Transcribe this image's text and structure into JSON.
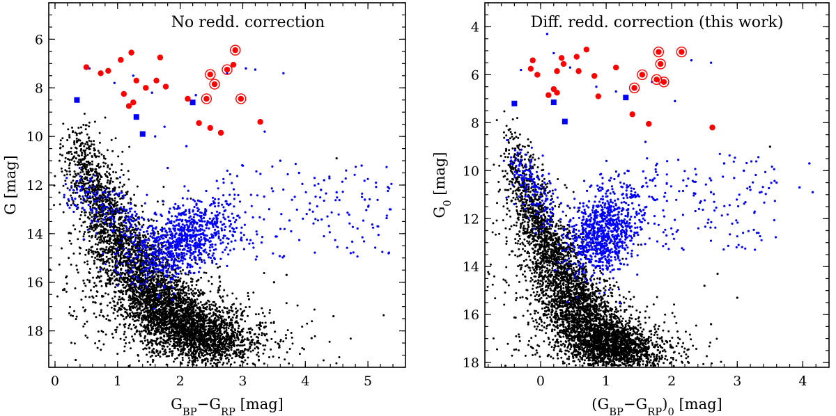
{
  "chart_data": [
    {
      "type": "scatter",
      "title": "No redd. correction",
      "xlabel": "G_BP−G_RP [mag]",
      "ylabel": "G [mag]",
      "xlim": [
        -0.1,
        5.6
      ],
      "ylim": [
        19.5,
        4.5
      ],
      "y_inverted": true,
      "xticks": [
        0,
        1,
        2,
        3,
        4,
        5
      ],
      "yticks": [
        6,
        8,
        10,
        12,
        14,
        16,
        18
      ],
      "grid": false,
      "colors": {
        "field_stars": "#000000",
        "members": "#0000ff",
        "giants": "#ff0000"
      },
      "field_stars": {
        "description_note": "dense black field-star sequence",
        "ridge": [
          [
            0.3,
            9.5
          ],
          [
            0.6,
            11.8
          ],
          [
            1.0,
            14.2
          ],
          [
            1.5,
            16.2
          ],
          [
            2.0,
            17.6
          ],
          [
            2.6,
            18.8
          ]
        ],
        "outliers": [
          [
            3.7,
            15.7
          ],
          [
            4.1,
            18.3
          ],
          [
            4.45,
            17.4
          ],
          [
            3.1,
            16.7
          ],
          [
            3.5,
            16.0
          ],
          [
            4.5,
            10.9
          ],
          [
            0.33,
            19.2
          ]
        ]
      },
      "blue_members": {
        "clump_center": [
          2.0,
          14.3
        ],
        "upper_sequence": [
          [
            0.35,
            12.2
          ],
          [
            0.6,
            12.6
          ],
          [
            0.9,
            13.0
          ],
          [
            1.2,
            13.5
          ]
        ],
        "bright": [
          [
            0.55,
            7.2
          ],
          [
            0.95,
            7.8
          ],
          [
            1.25,
            7.5
          ],
          [
            1.55,
            8.2
          ],
          [
            1.75,
            9.6
          ],
          [
            2.25,
            8.3
          ],
          [
            2.75,
            7.4
          ],
          [
            3.05,
            7.2
          ],
          [
            3.2,
            7.25
          ],
          [
            3.65,
            7.4
          ],
          [
            3.35,
            9.8
          ],
          [
            1.6,
            10.0
          ],
          [
            2.1,
            10.4
          ],
          [
            1.8,
            11.3
          ]
        ],
        "far_red": [
          [
            4.25,
            12.2
          ],
          [
            4.5,
            12.3
          ],
          [
            4.9,
            11.2
          ],
          [
            4.95,
            12.6
          ],
          [
            5.35,
            13.0
          ],
          [
            4.3,
            11.8
          ],
          [
            3.9,
            11.5
          ],
          [
            3.6,
            11.0
          ]
        ]
      },
      "blue_squares": [
        [
          0.35,
          8.5
        ],
        [
          1.3,
          9.2
        ],
        [
          1.4,
          9.9
        ],
        [
          2.2,
          8.6
        ]
      ],
      "red_giants": [
        [
          0.5,
          7.15
        ],
        [
          0.73,
          7.4
        ],
        [
          0.85,
          7.3
        ],
        [
          1.05,
          6.85
        ],
        [
          1.22,
          6.55
        ],
        [
          1.1,
          8.25
        ],
        [
          1.18,
          8.75
        ],
        [
          1.25,
          8.6
        ],
        [
          1.3,
          7.7
        ],
        [
          1.45,
          8.0
        ],
        [
          1.68,
          6.75
        ],
        [
          1.77,
          7.95
        ],
        [
          1.62,
          7.7
        ],
        [
          2.12,
          8.45
        ],
        [
          2.3,
          9.45
        ],
        [
          2.48,
          9.65
        ],
        [
          2.65,
          9.85
        ],
        [
          2.85,
          7.05
        ],
        [
          3.28,
          9.4
        ]
      ],
      "red_giants_circled": [
        [
          2.42,
          8.45
        ],
        [
          2.48,
          7.45
        ],
        [
          2.55,
          7.85
        ],
        [
          2.75,
          7.25
        ],
        [
          2.88,
          6.45
        ],
        [
          2.97,
          8.45
        ]
      ]
    },
    {
      "type": "scatter",
      "title": "Diff. redd. correction (this work)",
      "xlabel": "(G_BP−G_RP)_0 [mag]",
      "ylabel": "G_0 [mag]",
      "xlim": [
        -0.85,
        4.4
      ],
      "ylim": [
        18.2,
        3.0
      ],
      "y_inverted": true,
      "xticks": [
        0,
        1,
        2,
        3,
        4
      ],
      "yticks": [
        4,
        6,
        8,
        10,
        12,
        14,
        16,
        18
      ],
      "grid": false,
      "colors": {
        "field_stars": "#000000",
        "members": "#0000ff",
        "giants": "#ff0000"
      },
      "field_stars": {
        "description_note": "tight black main sequence",
        "ridge": [
          [
            -0.5,
            7.8
          ],
          [
            -0.25,
            10.5
          ],
          [
            0.0,
            12.4
          ],
          [
            0.3,
            14.2
          ],
          [
            0.6,
            15.8
          ],
          [
            0.9,
            17.0
          ],
          [
            1.3,
            17.8
          ]
        ],
        "outliers": [
          [
            2.7,
            14.3
          ],
          [
            3.5,
            9.0
          ],
          [
            2.6,
            16.4
          ],
          [
            2.1,
            17.2
          ],
          [
            3.0,
            15.3
          ],
          [
            2.5,
            14.8
          ]
        ]
      },
      "blue_members": {
        "clump_center": [
          1.0,
          12.5
        ],
        "upper_sequence": [
          [
            -0.35,
            9.8
          ],
          [
            -0.2,
            10.4
          ],
          [
            -0.05,
            11.0
          ],
          [
            0.1,
            11.5
          ]
        ],
        "bright": [
          [
            -0.3,
            5.8
          ],
          [
            0.1,
            4.3
          ],
          [
            0.2,
            5.1
          ],
          [
            0.45,
            5.7
          ],
          [
            0.85,
            6.5
          ],
          [
            1.15,
            6.7
          ],
          [
            1.45,
            6.6
          ],
          [
            1.7,
            6.3
          ],
          [
            2.3,
            5.4
          ],
          [
            2.6,
            5.5
          ],
          [
            2.05,
            7.1
          ],
          [
            1.6,
            8.8
          ]
        ],
        "far_red": [
          [
            3.1,
            10.0
          ],
          [
            3.2,
            10.8
          ],
          [
            3.6,
            10.5
          ],
          [
            3.95,
            10.7
          ],
          [
            4.1,
            9.7
          ],
          [
            4.15,
            10.9
          ],
          [
            2.8,
            9.7
          ],
          [
            2.6,
            10.9
          ]
        ]
      },
      "blue_squares": [
        [
          -0.4,
          7.2
        ],
        [
          0.2,
          7.15
        ],
        [
          0.37,
          7.95
        ],
        [
          1.3,
          6.95
        ]
      ],
      "red_giants": [
        [
          -0.12,
          5.4
        ],
        [
          -0.15,
          5.75
        ],
        [
          -0.05,
          6.0
        ],
        [
          0.12,
          6.85
        ],
        [
          0.2,
          6.6
        ],
        [
          0.25,
          6.75
        ],
        [
          0.25,
          5.85
        ],
        [
          0.32,
          5.3
        ],
        [
          0.35,
          5.55
        ],
        [
          0.55,
          5.25
        ],
        [
          0.58,
          5.85
        ],
        [
          0.7,
          4.95
        ],
        [
          0.82,
          6.05
        ],
        [
          0.88,
          6.9
        ],
        [
          1.15,
          5.7
        ],
        [
          1.4,
          7.65
        ],
        [
          1.65,
          8.05
        ],
        [
          2.62,
          8.2
        ]
      ],
      "red_giants_circled": [
        [
          1.43,
          6.55
        ],
        [
          1.55,
          6.0
        ],
        [
          1.77,
          6.2
        ],
        [
          1.8,
          5.05
        ],
        [
          1.83,
          5.55
        ],
        [
          1.88,
          6.3
        ],
        [
          2.15,
          5.05
        ]
      ]
    }
  ]
}
